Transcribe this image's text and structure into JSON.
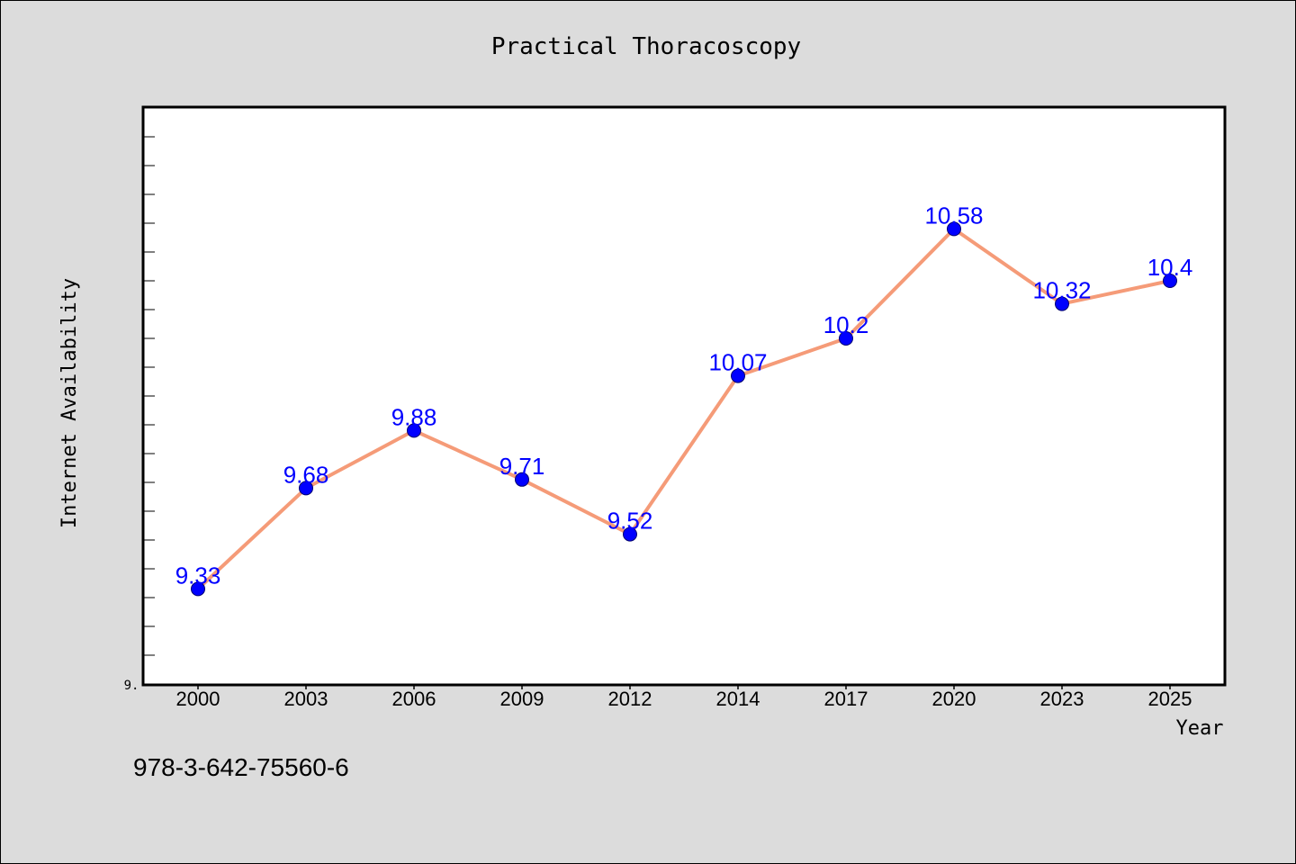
{
  "chart_data": {
    "type": "line",
    "title": "Practical Thoracoscopy",
    "xlabel": "Year",
    "ylabel": "Internet Availability",
    "categories": [
      "2000",
      "2003",
      "2006",
      "2009",
      "2012",
      "2014",
      "2017",
      "2020",
      "2023",
      "2025"
    ],
    "values": [
      9.33,
      9.68,
      9.88,
      9.71,
      9.52,
      10.07,
      10.2,
      10.58,
      10.32,
      10.4
    ],
    "data_labels": [
      "9.33",
      "9.68",
      "9.88",
      "9.71",
      "9.52",
      "10.07",
      "10.2",
      "10.58",
      "10.32",
      "10.4"
    ],
    "ylim": [
      9.0,
      11.0
    ],
    "y_tick_label": "9.",
    "line_color": "#f59b78",
    "marker_color": "#0000ff",
    "label_color": "#0000ff",
    "grid": false,
    "legend": "none"
  },
  "footer_text": "978-3-642-75560-6"
}
